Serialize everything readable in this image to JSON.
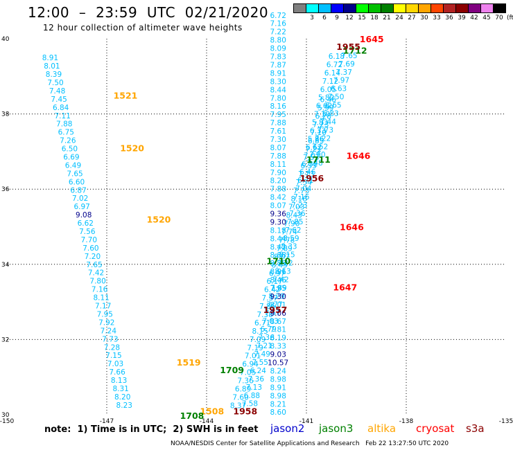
{
  "title": "12:00  –  23:59  UTC  02/21/2020",
  "subtitle": "12 hour collection of altimeter wave heights",
  "colorbar": {
    "labels": [
      "",
      "3",
      "6",
      "9",
      "12",
      "15",
      "18",
      "21",
      "24",
      "27",
      "30",
      "33",
      "36",
      "39",
      "42",
      "45",
      "70"
    ],
    "unit": "(ft)",
    "colors": [
      "#808080",
      "#00ffff",
      "#00bfff",
      "#0000ff",
      "#00008b",
      "#00ff00",
      "#00c000",
      "#008000",
      "#ffff00",
      "#ffd700",
      "#ffa500",
      "#ff4500",
      "#b22222",
      "#8b0000",
      "#800080",
      "#ee82ee",
      "#000000"
    ]
  },
  "note": "note:  1) Time is in UTC;  2) SWH is in feet",
  "legend": [
    {
      "label": "jason2",
      "color": "#0000cc"
    },
    {
      "label": "jason3",
      "color": "#008000"
    },
    {
      "label": "altika",
      "color": "#ffa500"
    },
    {
      "label": "cryosat",
      "color": "#ff0000"
    },
    {
      "label": "s3a",
      "color": "#8b0000"
    }
  ],
  "footer": "NOAA/NESDIS Center for Satellite Applications and Research   Feb 22 13:27:50 UTC 2020",
  "chart_data": {
    "type": "scatter",
    "xlim": [
      -150,
      -135
    ],
    "ylim": [
      30,
      40
    ],
    "xticks": [
      "-150",
      "-147",
      "-144",
      "-141",
      "-138",
      "-135"
    ],
    "yticks": [
      "30",
      "32",
      "34",
      "36",
      "38",
      "40"
    ],
    "grid": true,
    "series": [
      {
        "name": "altika",
        "color": "#00bfff",
        "x": -148.7,
        "y": 39.5,
        "values": [
          "8.91",
          "8.01",
          "8.39",
          "7.50",
          "7.48",
          "7.45",
          "6.84",
          "7.11",
          "7.88",
          "6.75",
          "7.26",
          "6.50",
          "6.69",
          "6.49",
          "7.65",
          "6.60",
          "6.87",
          "7.02",
          "6.97",
          "9.08",
          "6.62",
          "7.56",
          "7.70",
          "7.60",
          "7.20",
          "7.65",
          "7.42",
          "7.80",
          "7.16",
          "8.11",
          "7.17",
          "7.95",
          "7.92",
          "7.24",
          "7.73",
          "7.28",
          "7.15",
          "7.03",
          "7.66",
          "8.13",
          "8.31",
          "8.20",
          "8.23"
        ],
        "step": 0.22,
        "dx": 0.053
      },
      {
        "name": "jason3",
        "color": "#00bfff",
        "x": -143.05,
        "y": 30.25,
        "values": [
          "8.37",
          "7.60",
          "6.89",
          "7.36",
          "7.05",
          "6.94",
          "7.01",
          "7.19",
          "7.09",
          "8.15",
          "6.71",
          "7.38",
          "7.86",
          "7.37",
          "6.42",
          "6.17",
          "6.97",
          "8.45",
          "8.07",
          "7.89",
          "7.78",
          "7.74",
          "7.90",
          "8.43",
          "7.03",
          "8.16",
          "7.73",
          "7.54",
          "7.73",
          "6.35",
          "7.53",
          "7.21",
          "6.85",
          "7.10",
          "7.23",
          "6.28",
          "5.99",
          "6.46"
        ],
        "step": 0.22,
        "dx": 0.073
      },
      {
        "name": "s3a",
        "color": "#00bfff",
        "x": -142.7,
        "y": 30.3,
        "values": [
          "7.58",
          "6.88",
          "7.13",
          "7.36",
          "6.24",
          "7.55",
          "7.49",
          "7.21",
          "7.36",
          "6.79",
          "7.03",
          "7.57",
          "7.77",
          "8.29",
          "7.89",
          "7.42",
          "8.13",
          "8.22",
          "8.15",
          "8.33",
          "8.59",
          "7.62",
          "7.85",
          "7.36",
          "7.23",
          "7.16",
          "7.04",
          "6.71",
          "6.46",
          "6.32",
          "7.07",
          "6.62",
          "5.86",
          "6.33",
          "5.83",
          "7.10",
          "6.62",
          "5.82",
          "6.05",
          "7.12",
          "6.14",
          "6.72",
          "6.18"
        ],
        "step": 0.22,
        "dx": 0.062
      },
      {
        "name": "jason2",
        "color": "#00bfff",
        "x": -141.85,
        "y": 30.07,
        "values": [
          "8.60",
          "8.21",
          "8.98",
          "8.91",
          "8.98",
          "8.24",
          "10.57",
          "9.03",
          "8.33",
          "8.19",
          "7.81",
          "8.67",
          "9.06",
          "8.01",
          "9.30",
          "7.95",
          "8.46",
          "8.96",
          "8.75",
          "8.88",
          "8.42",
          "8.44",
          "8.18",
          "9.30",
          "9.36",
          "8.07",
          "8.42",
          "7.88",
          "8.20",
          "7.90",
          "8.11",
          "7.88",
          "8.07",
          "7.30",
          "7.61",
          "7.88",
          "7.95",
          "8.16",
          "7.80",
          "8.44",
          "8.30",
          "8.91",
          "7.87",
          "7.83",
          "8.09",
          "8.80",
          "7.22",
          "7.16",
          "6.72"
        ],
        "step": 0.22,
        "dx": 0.0
      },
      {
        "name": "cryosat",
        "color": "#00bfff",
        "x": -140.75,
        "y": 36.7,
        "values": [
          "7.48",
          "7.90",
          "7.52",
          "7.22",
          "7.73",
          "7.44",
          "6.83",
          "6.65",
          "7.50",
          "6.63",
          "7.97",
          "7.37",
          "7.69",
          "7.65"
        ],
        "step": 0.22,
        "dx": 0.08
      }
    ],
    "time_labels": [
      {
        "text": "1521",
        "x": -146.8,
        "y": 38.5,
        "color": "#ffa500"
      },
      {
        "text": "1520",
        "x": -146.6,
        "y": 37.1,
        "color": "#ffa500"
      },
      {
        "text": "1520",
        "x": -145.8,
        "y": 35.2,
        "color": "#ffa500"
      },
      {
        "text": "1519",
        "x": -144.9,
        "y": 31.4,
        "color": "#ffa500"
      },
      {
        "text": "1508",
        "x": -144.2,
        "y": 30.1,
        "color": "#ffa500"
      },
      {
        "text": "1708",
        "x": -144.8,
        "y": 29.98,
        "color": "#008000"
      },
      {
        "text": "1709",
        "x": -143.6,
        "y": 31.2,
        "color": "#008000"
      },
      {
        "text": "1710",
        "x": -142.2,
        "y": 34.1,
        "color": "#008000"
      },
      {
        "text": "1711",
        "x": -141.0,
        "y": 36.8,
        "color": "#008000"
      },
      {
        "text": "1712",
        "x": -139.9,
        "y": 39.7,
        "color": "#008000"
      },
      {
        "text": "1958",
        "x": -143.2,
        "y": 30.1,
        "color": "#8b0000"
      },
      {
        "text": "1957",
        "x": -142.3,
        "y": 32.8,
        "color": "#8b0000"
      },
      {
        "text": "1956",
        "x": -141.2,
        "y": 36.3,
        "color": "#8b0000"
      },
      {
        "text": "1955",
        "x": -140.1,
        "y": 39.8,
        "color": "#8b0000"
      },
      {
        "text": "1645",
        "x": -139.4,
        "y": 40.0,
        "color": "#ff0000"
      },
      {
        "text": "1646",
        "x": -139.8,
        "y": 36.9,
        "color": "#ff0000"
      },
      {
        "text": "1646",
        "x": -140.0,
        "y": 35.0,
        "color": "#ff0000"
      },
      {
        "text": "1647",
        "x": -140.2,
        "y": 33.4,
        "color": "#ff0000"
      }
    ]
  }
}
